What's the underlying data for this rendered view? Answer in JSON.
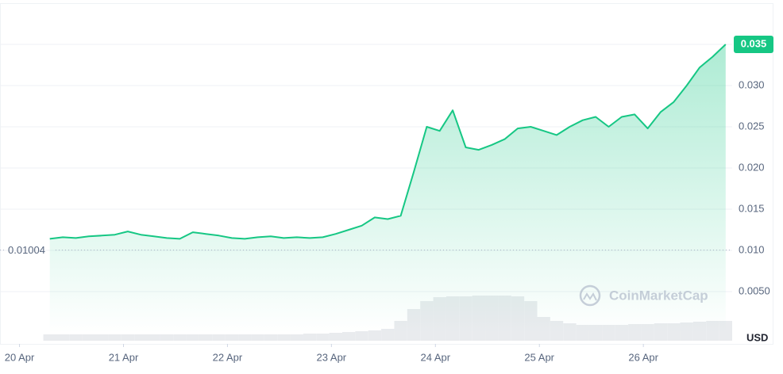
{
  "chart_data": {
    "type": "line",
    "x": [
      7,
      10,
      13,
      16,
      19,
      22,
      25,
      28,
      31,
      34,
      37,
      40,
      43,
      46,
      49,
      52,
      55,
      58,
      61,
      64,
      67,
      70,
      73,
      76,
      79,
      82,
      85,
      88,
      91,
      94,
      97,
      100,
      103,
      106,
      109,
      112,
      115,
      118,
      121,
      124,
      127,
      130,
      133,
      136,
      139,
      142,
      145,
      148,
      151,
      154,
      157,
      160,
      163
    ],
    "series": [
      {
        "color": "#16c784",
        "values": [
          0.0114,
          0.0116,
          0.0115,
          0.0117,
          0.0118,
          0.0119,
          0.0123,
          0.0119,
          0.0117,
          0.0115,
          0.0114,
          0.0122,
          0.012,
          0.0118,
          0.0115,
          0.0114,
          0.0116,
          0.0117,
          0.0115,
          0.0116,
          0.0115,
          0.0116,
          0.012,
          0.0125,
          0.013,
          0.014,
          0.0138,
          0.0142,
          0.0195,
          0.025,
          0.0245,
          0.027,
          0.0225,
          0.0222,
          0.0228,
          0.0235,
          0.0248,
          0.025,
          0.0245,
          0.024,
          0.025,
          0.0258,
          0.0262,
          0.025,
          0.0262,
          0.0265,
          0.0248,
          0.0268,
          0.028,
          0.03,
          0.0322,
          0.0335,
          0.035
        ]
      }
    ],
    "volume": {
      "color": "#e9ebee",
      "axis": "y2",
      "values": [
        8,
        8,
        8,
        8,
        8,
        8,
        8,
        8,
        8,
        8,
        8,
        8,
        8,
        8,
        8,
        8,
        8,
        8,
        8,
        8,
        9,
        9,
        10,
        11,
        12,
        13,
        15,
        25,
        40,
        50,
        55,
        56,
        56,
        57,
        57,
        57,
        56,
        50,
        30,
        25,
        22,
        20,
        20,
        20,
        20,
        21,
        21,
        22,
        22,
        23,
        24,
        25,
        25
      ]
    },
    "xlim": [
      -4.5,
      164.5
    ],
    "xticks": [
      {
        "value": 0,
        "label": "20 Apr"
      },
      {
        "value": 24,
        "label": "21 Apr"
      },
      {
        "value": 48,
        "label": "22 Apr"
      },
      {
        "value": 72,
        "label": "23 Apr"
      },
      {
        "value": 96,
        "label": "24 Apr"
      },
      {
        "value": 120,
        "label": "25 Apr"
      },
      {
        "value": 144,
        "label": "26 Apr"
      }
    ],
    "ylim": [
      0,
      0.04
    ],
    "yticks": [
      {
        "value": 0.005,
        "label": "0.0050"
      },
      {
        "value": 0.01,
        "label": "0.010"
      },
      0.015,
      {
        "value": 0.02,
        "label": "0.020"
      },
      0.025,
      {
        "value": 0.03,
        "label": "0.030"
      },
      0.035
    ],
    "y2lim": [
      0,
      100
    ],
    "reference": 0.01004,
    "grid": true,
    "currency": "USD",
    "watermark": "CoinMarketCap"
  }
}
